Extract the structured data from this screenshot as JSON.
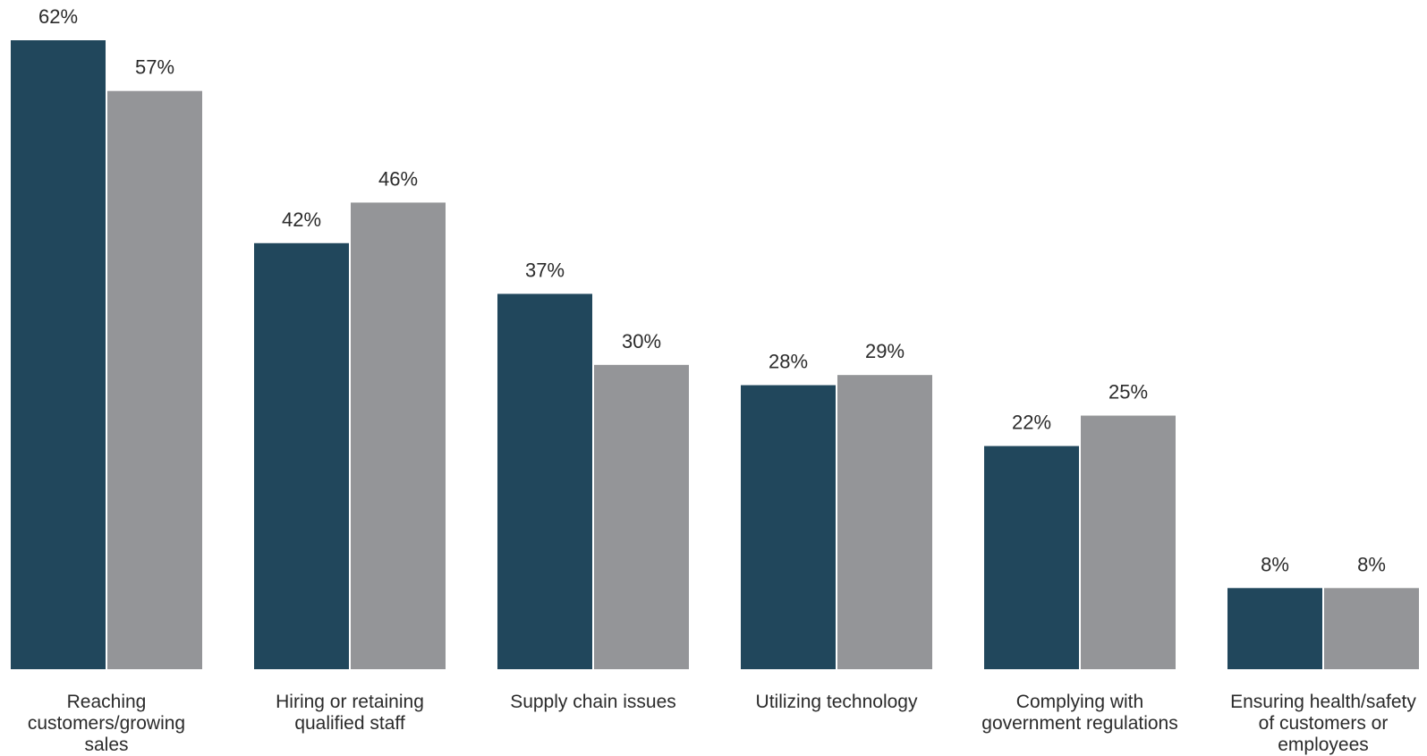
{
  "chart_data": {
    "type": "bar",
    "categories": [
      [
        "Reaching",
        "customers/growing",
        "sales"
      ],
      [
        "Hiring or retaining",
        "qualified staff"
      ],
      [
        "Supply chain issues"
      ],
      [
        "Utilizing technology"
      ],
      [
        "Complying with",
        "government regulations"
      ],
      [
        "Ensuring health/safety",
        "of customers or",
        "employees"
      ]
    ],
    "series": [
      {
        "values": [
          62,
          42,
          37,
          28,
          22,
          8
        ],
        "labels": [
          "62%",
          "42%",
          "37%",
          "28%",
          "22%",
          "8%"
        ],
        "color": "#21475c"
      },
      {
        "values": [
          57,
          46,
          30,
          29,
          25,
          8
        ],
        "labels": [
          "57%",
          "46%",
          "30%",
          "29%",
          "25%",
          "8%"
        ],
        "color": "#949598"
      }
    ],
    "unit": "%",
    "ylim": [
      0,
      62
    ],
    "grid": false,
    "legend": "none"
  }
}
